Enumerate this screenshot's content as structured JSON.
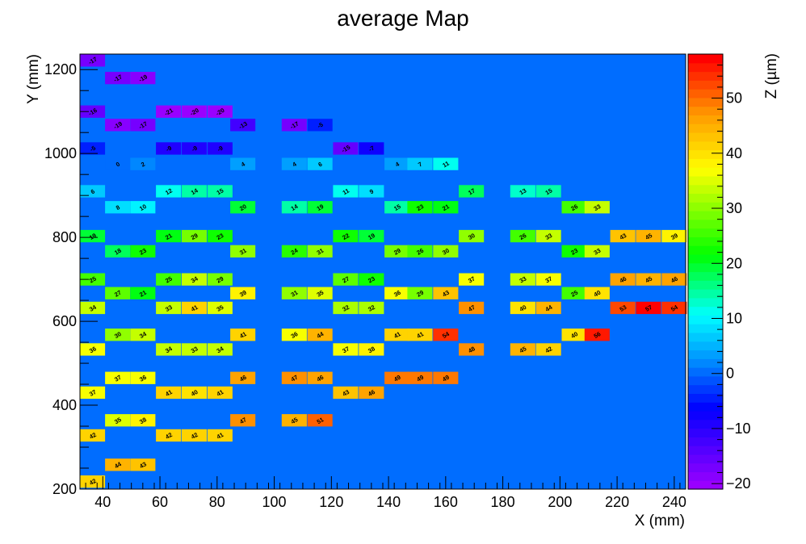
{
  "chart_data": {
    "type": "heatmap",
    "title": "average Map",
    "xlabel": "X (mm)",
    "ylabel": "Y (mm)",
    "zlabel": "Z (µm)",
    "xlim": [
      32,
      244
    ],
    "ylim": [
      200,
      1237
    ],
    "zlim": [
      -21,
      58
    ],
    "background_z": 0,
    "x_ticks": [
      40,
      60,
      80,
      100,
      120,
      140,
      160,
      180,
      200,
      220,
      240
    ],
    "y_ticks": [
      200,
      400,
      600,
      800,
      1000,
      1200
    ],
    "z_ticks": [
      -20,
      -10,
      0,
      10,
      20,
      30,
      40,
      50
    ],
    "y_tick_labels": [
      "200",
      "400",
      "600",
      "800",
      "1000",
      "1200"
    ],
    "z_tick_labels": [
      "−20",
      "−10",
      "0",
      "10",
      "20",
      "30",
      "40",
      "50"
    ],
    "bin_width": 8.8,
    "bin_height": 29.4,
    "rows": [
      {
        "y": 1222,
        "cells": [
          [
            36.4,
            -17
          ]
        ]
      },
      {
        "y": 1180,
        "cells": [
          [
            45.2,
            -17
          ],
          [
            54,
            -19
          ]
        ]
      },
      {
        "y": 1100,
        "cells": [
          [
            36.4,
            -16
          ],
          [
            63,
            -21
          ],
          [
            72,
            -20
          ],
          [
            81,
            -20
          ]
        ]
      },
      {
        "y": 1068,
        "cells": [
          [
            45.2,
            -19
          ],
          [
            54,
            -17
          ],
          [
            89,
            -13
          ],
          [
            107,
            -17
          ],
          [
            116,
            -5
          ]
        ]
      },
      {
        "y": 1012,
        "cells": [
          [
            36.4,
            -5
          ],
          [
            63,
            -9
          ],
          [
            72,
            -9
          ],
          [
            81,
            -9
          ],
          [
            125,
            -15
          ],
          [
            134,
            -7
          ]
        ]
      },
      {
        "y": 975,
        "cells": [
          [
            45.2,
            0
          ],
          [
            54,
            2
          ],
          [
            89,
            4
          ],
          [
            107,
            4
          ],
          [
            116,
            6
          ],
          [
            143,
            4
          ],
          [
            151,
            7
          ],
          [
            160,
            11
          ]
        ]
      },
      {
        "y": 910,
        "cells": [
          [
            36.4,
            6
          ],
          [
            63,
            12
          ],
          [
            72,
            14
          ],
          [
            81,
            15
          ],
          [
            125,
            11
          ],
          [
            134,
            9
          ],
          [
            169,
            17
          ],
          [
            187,
            13
          ],
          [
            196,
            15
          ]
        ]
      },
      {
        "y": 872,
        "cells": [
          [
            45.2,
            8
          ],
          [
            54,
            10
          ],
          [
            89,
            20
          ],
          [
            107,
            14
          ],
          [
            116,
            19
          ],
          [
            143,
            15
          ],
          [
            151,
            23
          ],
          [
            160,
            21
          ],
          [
            205,
            26
          ],
          [
            213,
            33
          ]
        ]
      },
      {
        "y": 803,
        "cells": [
          [
            36.4,
            19
          ],
          [
            63,
            21
          ],
          [
            72,
            29
          ],
          [
            81,
            23
          ],
          [
            125,
            22
          ],
          [
            134,
            19
          ],
          [
            169,
            30
          ],
          [
            187,
            26
          ],
          [
            196,
            33
          ],
          [
            222,
            43
          ],
          [
            231,
            45
          ],
          [
            240,
            39
          ]
        ]
      },
      {
        "y": 767,
        "cells": [
          [
            45.2,
            18
          ],
          [
            54,
            23
          ],
          [
            89,
            31
          ],
          [
            107,
            24
          ],
          [
            116,
            31
          ],
          [
            143,
            29
          ],
          [
            151,
            26
          ],
          [
            160,
            30
          ],
          [
            205,
            23
          ],
          [
            213,
            33
          ]
        ]
      },
      {
        "y": 700,
        "cells": [
          [
            36.4,
            25
          ],
          [
            63,
            25
          ],
          [
            72,
            34
          ],
          [
            81,
            29
          ],
          [
            125,
            27
          ],
          [
            134,
            23
          ],
          [
            169,
            37
          ],
          [
            187,
            33
          ],
          [
            196,
            37
          ],
          [
            222,
            46
          ],
          [
            231,
            45
          ],
          [
            240,
            46
          ]
        ]
      },
      {
        "y": 667,
        "cells": [
          [
            45.2,
            27
          ],
          [
            54,
            21
          ],
          [
            89,
            39
          ],
          [
            107,
            31
          ],
          [
            116,
            35
          ],
          [
            143,
            36
          ],
          [
            151,
            29
          ],
          [
            160,
            43
          ],
          [
            205,
            25
          ],
          [
            213,
            40
          ]
        ]
      },
      {
        "y": 632,
        "cells": [
          [
            36.4,
            34
          ],
          [
            63,
            33
          ],
          [
            72,
            41
          ],
          [
            81,
            35
          ],
          [
            125,
            32
          ],
          [
            134,
            32
          ],
          [
            169,
            47
          ],
          [
            187,
            40
          ],
          [
            196,
            44
          ],
          [
            222,
            53
          ],
          [
            231,
            57
          ],
          [
            240,
            54
          ]
        ]
      },
      {
        "y": 568,
        "cells": [
          [
            45.2,
            30
          ],
          [
            54,
            34
          ],
          [
            89,
            41
          ],
          [
            107,
            36
          ],
          [
            116,
            44
          ],
          [
            143,
            41
          ],
          [
            151,
            41
          ],
          [
            160,
            54
          ],
          [
            205,
            40
          ],
          [
            213,
            56
          ]
        ]
      },
      {
        "y": 533,
        "cells": [
          [
            36.4,
            36
          ],
          [
            63,
            34
          ],
          [
            72,
            33
          ],
          [
            81,
            34
          ],
          [
            125,
            37
          ],
          [
            134,
            38
          ],
          [
            169,
            48
          ],
          [
            187,
            45
          ],
          [
            196,
            42
          ]
        ]
      },
      {
        "y": 465,
        "cells": [
          [
            45.2,
            37
          ],
          [
            54,
            36
          ],
          [
            89,
            46
          ],
          [
            107,
            47
          ],
          [
            116,
            46
          ],
          [
            143,
            49
          ],
          [
            151,
            49
          ],
          [
            160,
            49
          ]
        ]
      },
      {
        "y": 430,
        "cells": [
          [
            36.4,
            37
          ],
          [
            63,
            41
          ],
          [
            72,
            40
          ],
          [
            81,
            41
          ],
          [
            125,
            43
          ],
          [
            134,
            46
          ]
        ]
      },
      {
        "y": 364,
        "cells": [
          [
            45.2,
            35
          ],
          [
            54,
            38
          ],
          [
            89,
            47
          ],
          [
            107,
            45
          ],
          [
            116,
            51
          ]
        ]
      },
      {
        "y": 328,
        "cells": [
          [
            36.4,
            42
          ],
          [
            63,
            42
          ],
          [
            72,
            42
          ],
          [
            81,
            41
          ]
        ]
      },
      {
        "y": 258,
        "cells": [
          [
            45.2,
            44
          ],
          [
            54,
            43
          ]
        ]
      },
      {
        "y": 218,
        "cells": [
          [
            36.4,
            42
          ]
        ]
      }
    ]
  }
}
